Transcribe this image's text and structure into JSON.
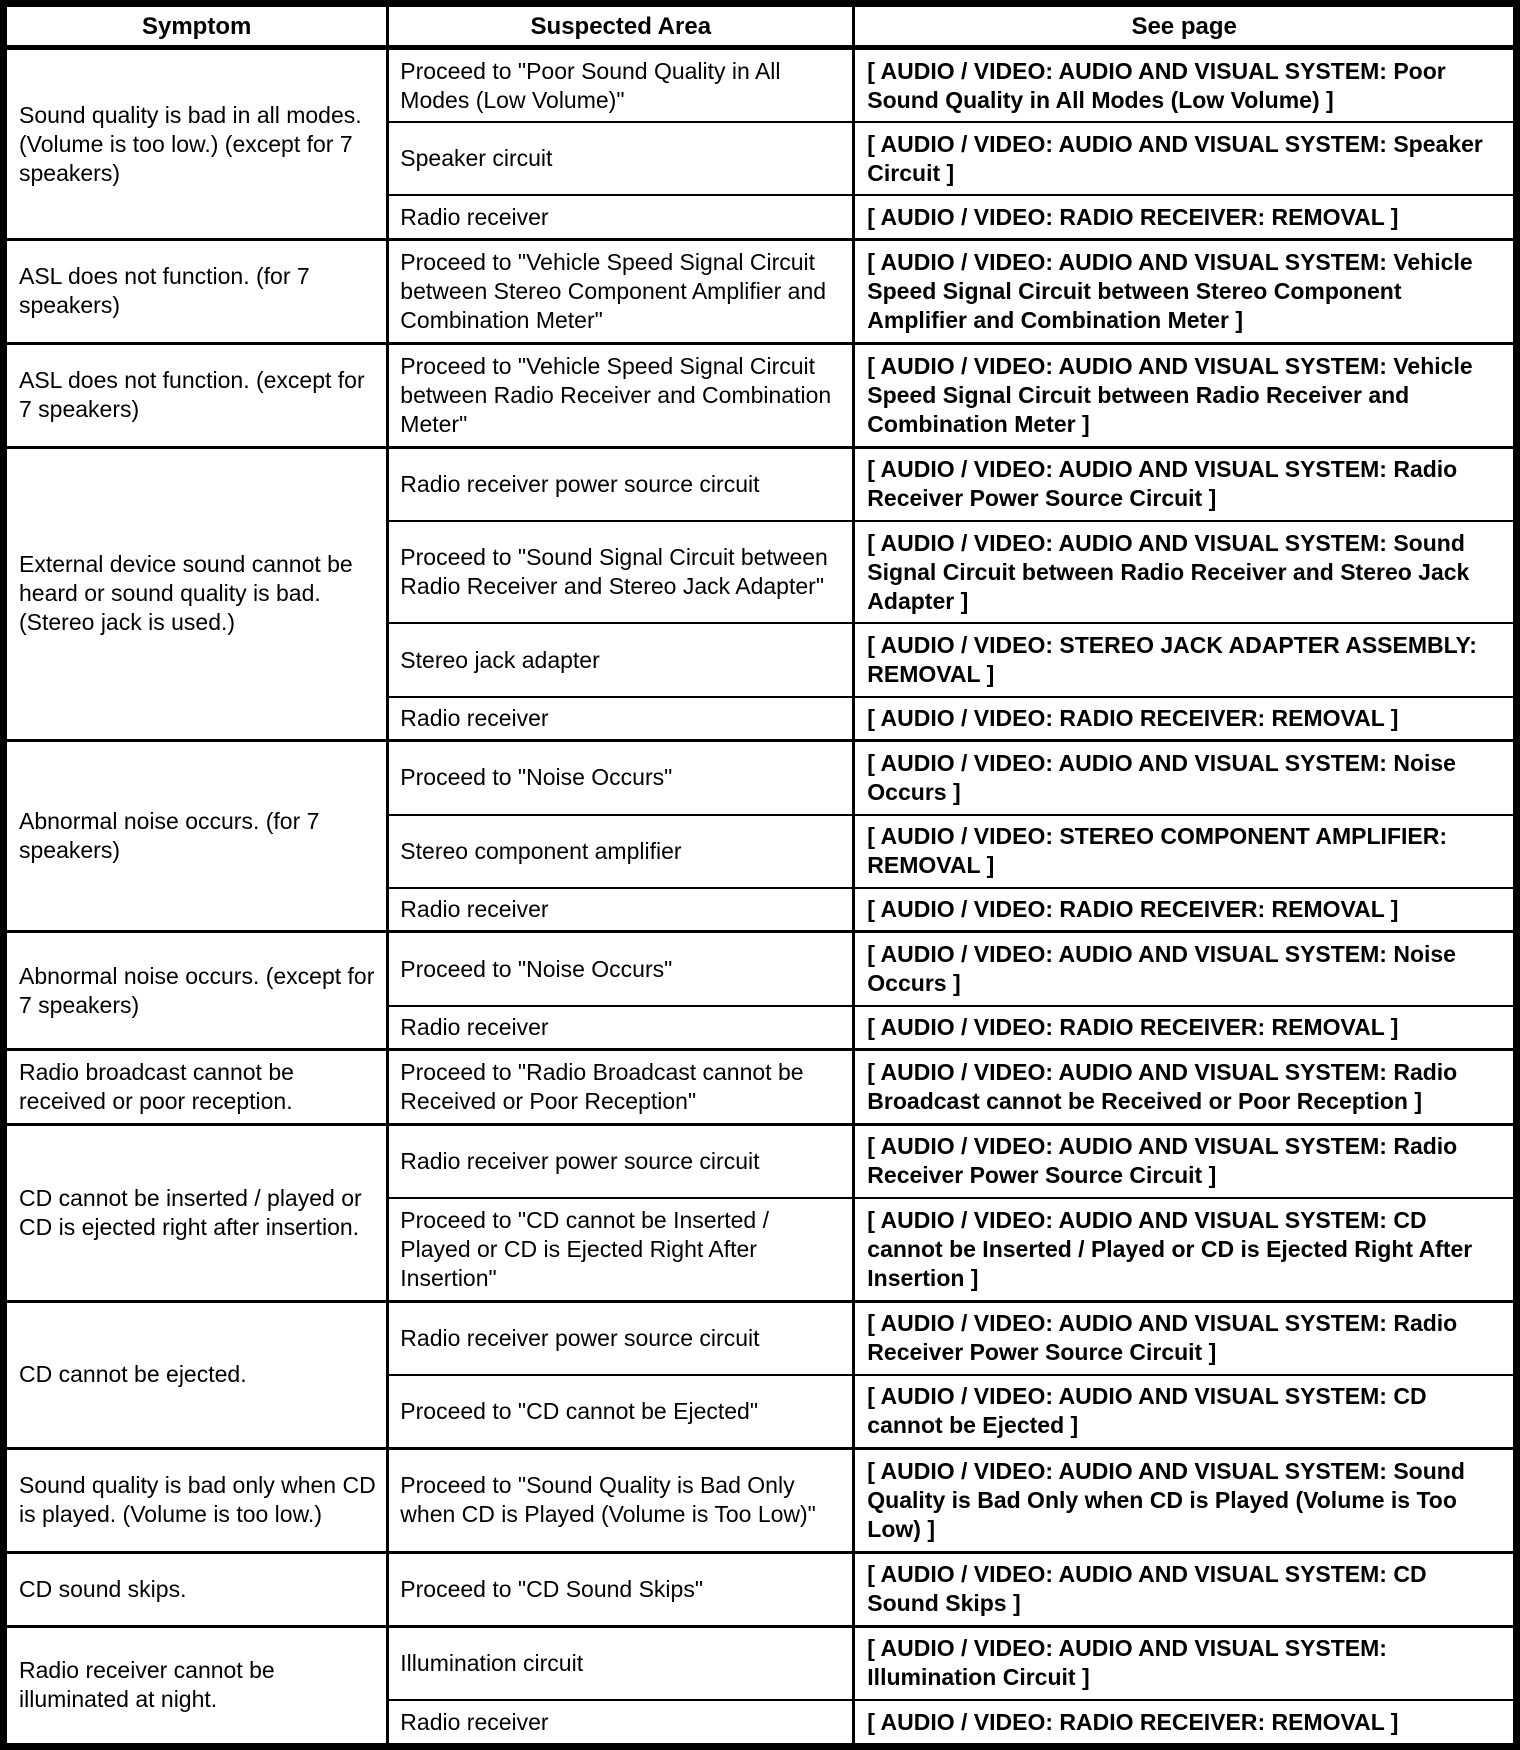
{
  "colors": {
    "background": "#ffffff",
    "text": "#000000",
    "border": "#000000"
  },
  "table": {
    "headers": [
      {
        "label": "Symptom"
      },
      {
        "label": "Suspected Area"
      },
      {
        "label": "See page"
      }
    ],
    "groups": [
      {
        "symptom": "Sound quality is bad in all modes. (Volume is too low.) (except for 7 speakers)",
        "rows": [
          {
            "area": "Proceed to \"Poor Sound Quality in All Modes (Low Volume)\"",
            "page": "[ AUDIO / VIDEO: AUDIO AND VISUAL SYSTEM: Poor Sound Quality in All Modes (Low Volume) ]"
          },
          {
            "area": "Speaker circuit",
            "page": "[ AUDIO / VIDEO: AUDIO AND VISUAL SYSTEM: Speaker Circuit ]"
          },
          {
            "area": "Radio receiver",
            "page": "[ AUDIO / VIDEO: RADIO RECEIVER: REMOVAL ]"
          }
        ]
      },
      {
        "symptom": "ASL does not function. (for 7 speakers)",
        "rows": [
          {
            "area": "Proceed to \"Vehicle Speed Signal Circuit between Stereo Component Amplifier and Combination Meter\"",
            "page": "[ AUDIO / VIDEO: AUDIO AND VISUAL SYSTEM: Vehicle Speed Signal Circuit between Stereo Component Amplifier and Combination Meter ]"
          }
        ]
      },
      {
        "symptom": "ASL does not function. (except for 7 speakers)",
        "rows": [
          {
            "area": "Proceed to \"Vehicle Speed Signal Circuit between Radio Receiver and Combination Meter\"",
            "page": "[ AUDIO / VIDEO: AUDIO AND VISUAL SYSTEM: Vehicle Speed Signal Circuit between Radio Receiver and Combination Meter ]"
          }
        ]
      },
      {
        "symptom": "External device sound cannot be heard or sound quality is bad. (Stereo jack is used.)",
        "rows": [
          {
            "area": "Radio receiver power source circuit",
            "page": "[ AUDIO / VIDEO: AUDIO AND VISUAL SYSTEM: Radio Receiver Power Source Circuit ]"
          },
          {
            "area": "Proceed to \"Sound Signal Circuit between Radio Receiver and Stereo Jack Adapter\"",
            "page": "[ AUDIO / VIDEO: AUDIO AND VISUAL SYSTEM: Sound Signal Circuit between Radio Receiver and Stereo Jack Adapter ]"
          },
          {
            "area": "Stereo jack adapter",
            "page": "[ AUDIO / VIDEO: STEREO JACK ADAPTER ASSEMBLY: REMOVAL ]"
          },
          {
            "area": "Radio receiver",
            "page": "[ AUDIO / VIDEO: RADIO RECEIVER: REMOVAL ]"
          }
        ]
      },
      {
        "symptom": "Abnormal noise occurs. (for 7 speakers)",
        "rows": [
          {
            "area": "Proceed to \"Noise Occurs\"",
            "page": "[ AUDIO / VIDEO: AUDIO AND VISUAL SYSTEM: Noise Occurs ]"
          },
          {
            "area": "Stereo component amplifier",
            "page": "[ AUDIO / VIDEO: STEREO COMPONENT AMPLIFIER: REMOVAL ]"
          },
          {
            "area": "Radio receiver",
            "page": "[ AUDIO / VIDEO: RADIO RECEIVER: REMOVAL ]"
          }
        ]
      },
      {
        "symptom": "Abnormal noise occurs. (except for 7 speakers)",
        "rows": [
          {
            "area": "Proceed to \"Noise Occurs\"",
            "page": "[ AUDIO / VIDEO: AUDIO AND VISUAL SYSTEM: Noise Occurs ]"
          },
          {
            "area": "Radio receiver",
            "page": "[ AUDIO / VIDEO: RADIO RECEIVER: REMOVAL ]"
          }
        ]
      },
      {
        "symptom": "Radio broadcast cannot be received or poor reception.",
        "rows": [
          {
            "area": "Proceed to \"Radio Broadcast cannot be Received or Poor Reception\"",
            "page": "[ AUDIO / VIDEO: AUDIO AND VISUAL SYSTEM: Radio Broadcast cannot be Received or Poor Reception ]"
          }
        ]
      },
      {
        "symptom": "CD cannot be inserted / played or CD is ejected right after insertion.",
        "rows": [
          {
            "area": "Radio receiver power source circuit",
            "page": "[ AUDIO / VIDEO: AUDIO AND VISUAL SYSTEM: Radio Receiver Power Source Circuit ]"
          },
          {
            "area": "Proceed to \"CD cannot be Inserted / Played or CD is Ejected Right After Insertion\"",
            "page": "[ AUDIO / VIDEO: AUDIO AND VISUAL SYSTEM: CD cannot be Inserted / Played or CD is Ejected Right After Insertion ]"
          }
        ]
      },
      {
        "symptom": "CD cannot be ejected.",
        "rows": [
          {
            "area": "Radio receiver power source circuit",
            "page": "[ AUDIO / VIDEO: AUDIO AND VISUAL SYSTEM: Radio Receiver Power Source Circuit ]"
          },
          {
            "area": "Proceed to \"CD cannot be Ejected\"",
            "page": "[ AUDIO / VIDEO: AUDIO AND VISUAL SYSTEM: CD cannot be Ejected ]"
          }
        ]
      },
      {
        "symptom": "Sound quality is bad only when CD is played. (Volume is too low.)",
        "rows": [
          {
            "area": "Proceed to \"Sound Quality is Bad Only when CD is Played (Volume is Too Low)\"",
            "page": "[ AUDIO / VIDEO: AUDIO AND VISUAL SYSTEM: Sound Quality is Bad Only when CD is Played (Volume is Too Low) ]"
          }
        ]
      },
      {
        "symptom": "CD sound skips.",
        "rows": [
          {
            "area": "Proceed to \"CD Sound Skips\"",
            "page": "[ AUDIO / VIDEO: AUDIO AND VISUAL SYSTEM: CD Sound Skips ]"
          }
        ]
      },
      {
        "symptom": "Radio receiver cannot be illuminated at night.",
        "rows": [
          {
            "area": "Illumination circuit",
            "page": "[ AUDIO / VIDEO: AUDIO AND VISUAL SYSTEM: Illumination Circuit ]"
          },
          {
            "area": "Radio receiver",
            "page": "[ AUDIO / VIDEO: RADIO RECEIVER: REMOVAL ]"
          }
        ]
      }
    ]
  }
}
